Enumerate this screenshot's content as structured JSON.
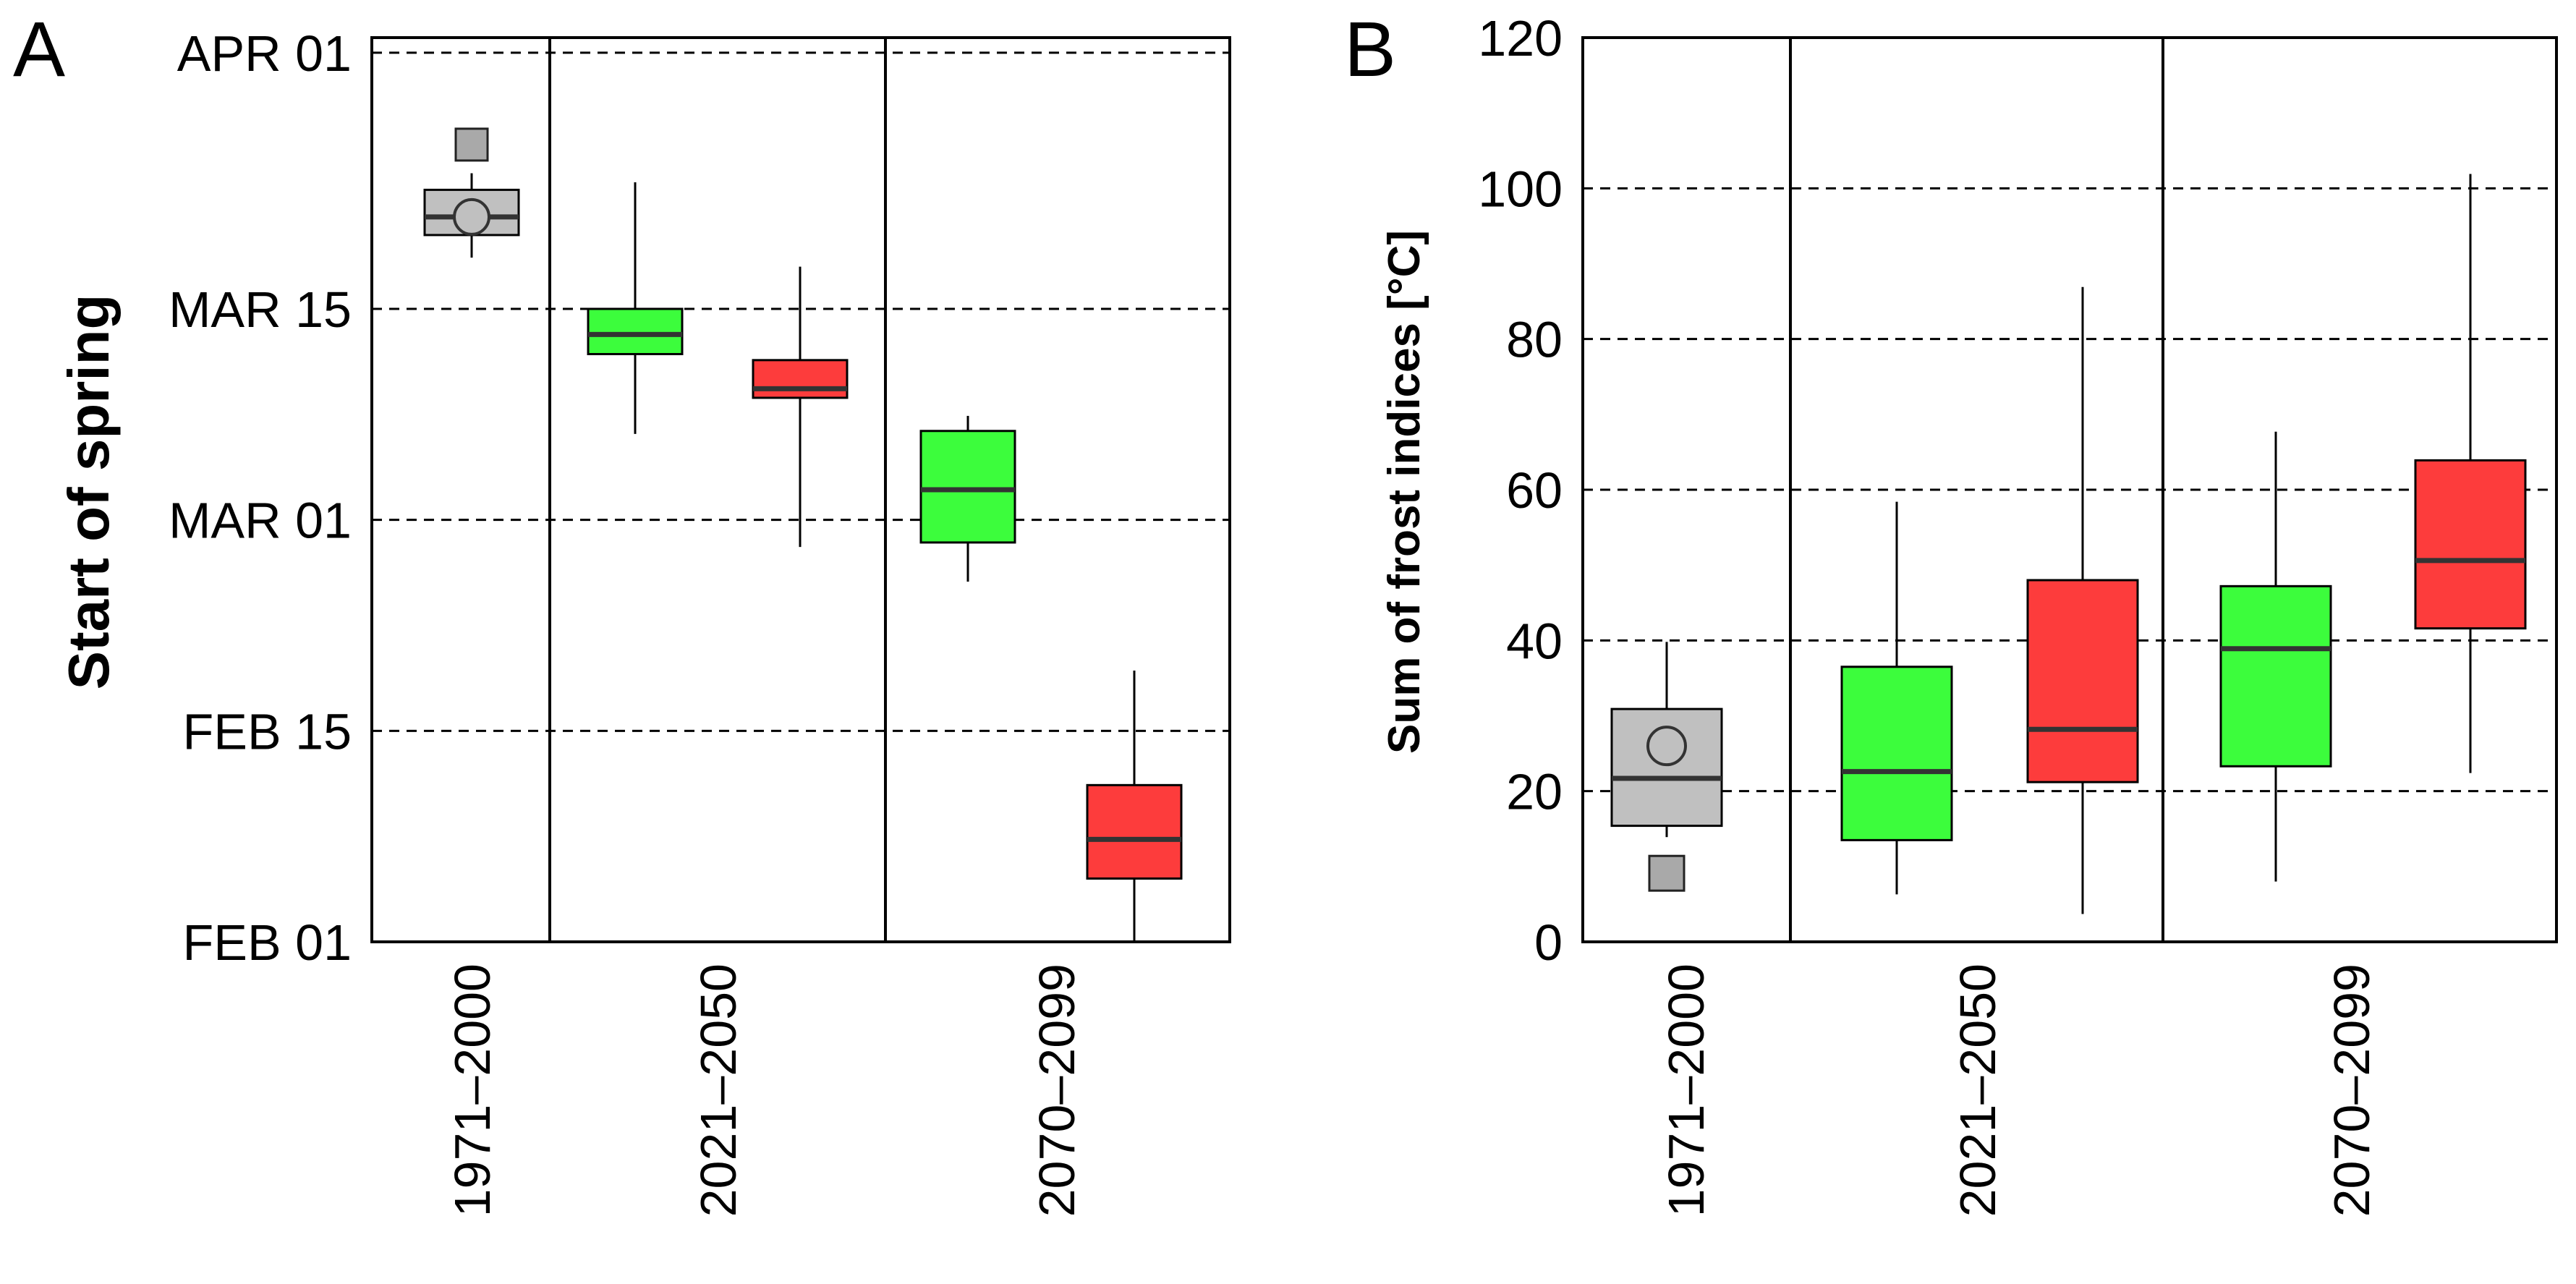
{
  "colors": {
    "reference": "#c0c0c0",
    "scenario_green": "#3cfd3c",
    "scenario_red": "#fd3c3c",
    "observed_marker": "#a9a9a9",
    "axis": "#000000"
  },
  "chart_data": [
    {
      "panel_label": "A",
      "type": "box",
      "ylabel": "Start of spring",
      "y_unit": "day of year",
      "ylim": [
        32,
        92
      ],
      "yticks": [
        {
          "value": 32,
          "label": "FEB 01"
        },
        {
          "value": 46,
          "label": "FEB 15"
        },
        {
          "value": 60,
          "label": "MAR 01"
        },
        {
          "value": 74,
          "label": "MAR 15"
        },
        {
          "value": 91,
          "label": "APR 01"
        }
      ],
      "grid": "horizontal dashed",
      "categories": [
        "1971–2000",
        "2021–2050",
        "2070–2099"
      ],
      "boxes": [
        {
          "period": "1971–2000",
          "color": "reference",
          "min": 77.4,
          "q1": 78.9,
          "median": 80.1,
          "q3": 81.9,
          "max": 83.0,
          "mean": 80.1,
          "observed": 84.9
        },
        {
          "period": "2021–2050",
          "color": "scenario_green",
          "min": 65.7,
          "q1": 71.0,
          "median": 72.3,
          "q3": 74.0,
          "max": 82.4
        },
        {
          "period": "2021–2050",
          "color": "scenario_red",
          "min": 58.2,
          "q1": 68.1,
          "median": 68.7,
          "q3": 70.6,
          "max": 76.8
        },
        {
          "period": "2070–2099",
          "color": "scenario_green",
          "min": 55.9,
          "q1": 58.5,
          "median": 62.0,
          "q3": 65.9,
          "max": 66.9
        },
        {
          "period": "2070–2099",
          "color": "scenario_red",
          "min": 32.0,
          "q1": 36.2,
          "median": 38.8,
          "q3": 42.4,
          "max": 50.0
        }
      ]
    },
    {
      "panel_label": "B",
      "type": "box",
      "ylabel": "Sum of frost indices [°C]",
      "ylim": [
        0,
        120
      ],
      "yticks": [
        {
          "value": 0,
          "label": "0"
        },
        {
          "value": 20,
          "label": "20"
        },
        {
          "value": 40,
          "label": "40"
        },
        {
          "value": 60,
          "label": "60"
        },
        {
          "value": 80,
          "label": "80"
        },
        {
          "value": 100,
          "label": "100"
        },
        {
          "value": 120,
          "label": "120"
        }
      ],
      "grid": "horizontal dashed",
      "categories": [
        "1971–2000",
        "2021–2050",
        "2070–2099"
      ],
      "boxes": [
        {
          "period": "1971–2000",
          "color": "reference",
          "min": 13.9,
          "q1": 15.4,
          "median": 21.7,
          "q3": 30.9,
          "max": 39.8,
          "mean": 26.0,
          "observed": 9.1
        },
        {
          "period": "2021–2050",
          "color": "scenario_green",
          "min": 6.3,
          "q1": 13.5,
          "median": 22.6,
          "q3": 36.5,
          "max": 58.4
        },
        {
          "period": "2021–2050",
          "color": "scenario_red",
          "min": 3.7,
          "q1": 21.2,
          "median": 28.2,
          "q3": 48.0,
          "max": 86.9
        },
        {
          "period": "2070–2099",
          "color": "scenario_green",
          "min": 8.0,
          "q1": 23.3,
          "median": 38.9,
          "q3": 47.2,
          "max": 67.7
        },
        {
          "period": "2070–2099",
          "color": "scenario_red",
          "min": 22.4,
          "q1": 41.6,
          "median": 50.6,
          "q3": 63.9,
          "max": 101.9
        }
      ]
    }
  ]
}
